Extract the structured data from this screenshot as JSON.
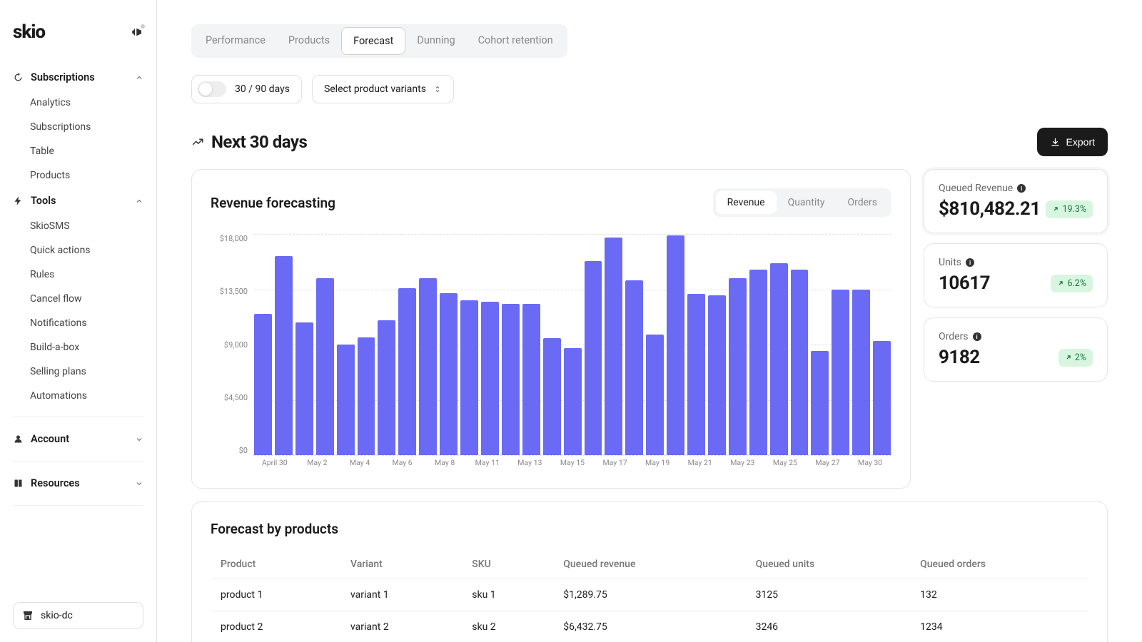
{
  "brand": {
    "logo_text": "skio"
  },
  "sidebar": {
    "sections": [
      {
        "id": "subscriptions",
        "label": "Subscriptions",
        "expanded": true,
        "icon": "refresh",
        "items": [
          "Analytics",
          "Subscriptions",
          "Table",
          "Products"
        ]
      },
      {
        "id": "tools",
        "label": "Tools",
        "expanded": true,
        "icon": "bolt",
        "items": [
          "SkioSMS",
          "Quick actions",
          "Rules",
          "Cancel flow",
          "Notifications",
          "Build-a-box",
          "Selling plans",
          "Automations"
        ]
      },
      {
        "id": "account",
        "label": "Account",
        "expanded": false,
        "icon": "user",
        "items": []
      },
      {
        "id": "resources",
        "label": "Resources",
        "expanded": false,
        "icon": "book",
        "items": []
      }
    ],
    "store_name": "skio-dc"
  },
  "tabs": [
    "Performance",
    "Products",
    "Forecast",
    "Dunning",
    "Cohort retention"
  ],
  "active_tab": "Forecast",
  "controls": {
    "switch_label": "30 / 90 days",
    "switch_on": false,
    "variant_selector_label": "Select product variants"
  },
  "page_title": "Next 30 days",
  "export_label": "Export",
  "revenue_chart": {
    "title": "Revenue forecasting",
    "type": "bar",
    "chart_tabs": [
      "Revenue",
      "Quantity",
      "Orders"
    ],
    "active_chart_tab": "Revenue",
    "bar_color": "#6a6af4",
    "background_color": "#ffffff",
    "grid_color": "#e0e0e0",
    "grid_dashed": true,
    "ylim": [
      0,
      18000
    ],
    "ytick_step": 4500,
    "y_labels": [
      "$18,000",
      "$13,500",
      "$9,000",
      "$4,500",
      "$0"
    ],
    "x_labels_visible": [
      "April 30",
      "May 2",
      "May 4",
      "May 6",
      "May 8",
      "May 11",
      "May 13",
      "May 15",
      "May 17",
      "May 19",
      "May 21",
      "May 23",
      "May 25",
      "May 27",
      "May 30"
    ],
    "x_labels_all": [
      "April 30",
      "May 1",
      "May 2",
      "May 3",
      "May 4",
      "May 5",
      "May 6",
      "May 7",
      "May 8",
      "May 9",
      "May 10",
      "May 11",
      "May 12",
      "May 13",
      "May 14",
      "May 15",
      "May 16",
      "May 17",
      "May 18",
      "May 19",
      "May 20",
      "May 21",
      "May 22",
      "May 23",
      "May 24",
      "May 25",
      "May 26",
      "May 27",
      "May 28",
      "May 29",
      "May 30"
    ],
    "values": [
      11500,
      16200,
      10800,
      14400,
      9000,
      9600,
      11000,
      13600,
      14400,
      13200,
      12600,
      12500,
      12300,
      12300,
      9500,
      8700,
      15800,
      17700,
      14200,
      9800,
      17900,
      13100,
      13000,
      14400,
      15100,
      15600,
      15100,
      8500,
      13500,
      13500,
      9300
    ],
    "axis_font_size": 11,
    "bar_border_radius": 2
  },
  "stats": [
    {
      "label": "Queued Revenue",
      "value": "$810,482.21",
      "change": "19.3%",
      "highlighted": true
    },
    {
      "label": "Units",
      "value": "10617",
      "change": "6.2%",
      "highlighted": false
    },
    {
      "label": "Orders",
      "value": "9182",
      "change": "2%",
      "highlighted": false
    }
  ],
  "table": {
    "title": "Forecast by products",
    "columns": [
      "Product",
      "Variant",
      "SKU",
      "Queued revenue",
      "Queued units",
      "Queued orders"
    ],
    "rows": [
      [
        "product 1",
        "variant 1",
        "sku 1",
        "$1,289.75",
        "3125",
        "132"
      ],
      [
        "product 2",
        "variant 2",
        "sku 2",
        "$6,432.75",
        "3246",
        "1234"
      ]
    ]
  },
  "colors": {
    "badge_bg": "#d8f5e0",
    "badge_text": "#1a7a3f",
    "border": "#e5e5e5",
    "tab_bg": "#f3f4f6",
    "text_muted": "#888888"
  }
}
